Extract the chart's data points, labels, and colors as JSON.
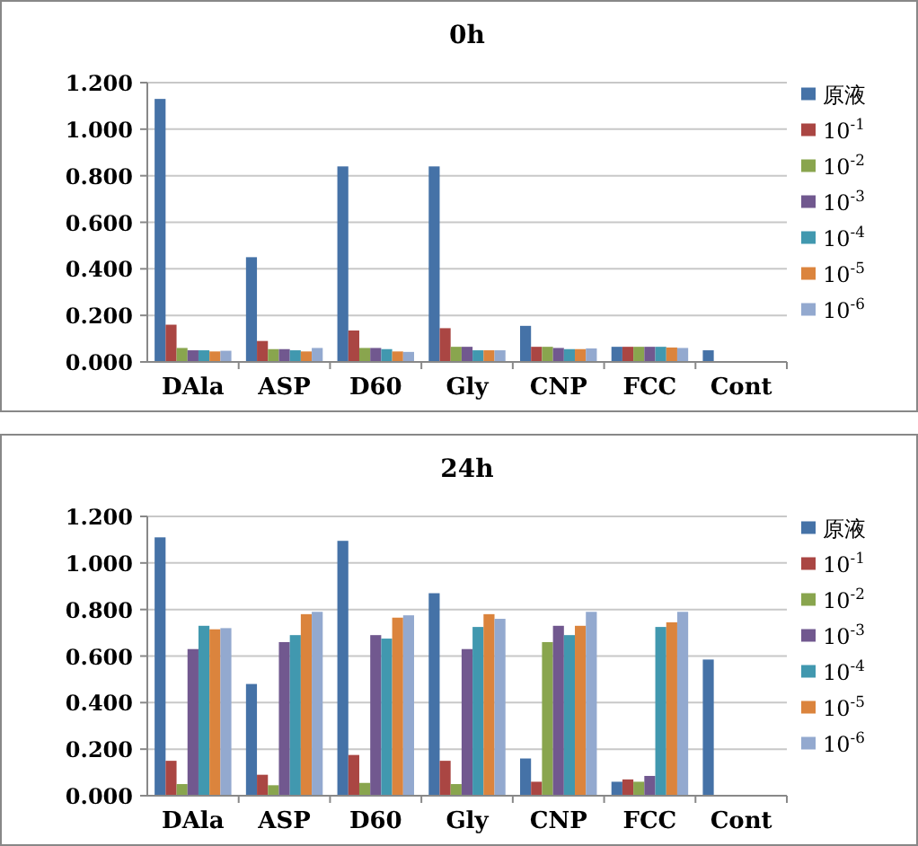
{
  "chart_data": [
    {
      "type": "bar",
      "title": "0h",
      "categories": [
        "DAla",
        "ASP",
        "D60",
        "Gly",
        "CNP",
        "FCC",
        "Cont"
      ],
      "ylim": [
        0,
        1.2
      ],
      "yticks": [
        {
          "value": 0,
          "label": "0.000"
        },
        {
          "value": 0.2,
          "label": "0.200"
        },
        {
          "value": 0.4,
          "label": "0.400"
        },
        {
          "value": 0.6,
          "label": "0.600"
        },
        {
          "value": 0.8,
          "label": "0.800"
        },
        {
          "value": 1.0,
          "label": "1.000"
        },
        {
          "value": 1.2,
          "label": "1.200"
        }
      ],
      "grid": "y",
      "legend": "right",
      "series": [
        {
          "name": "原液",
          "color": "#4572a7",
          "values": [
            1.13,
            0.45,
            0.84,
            0.84,
            0.155,
            0.065,
            0.05
          ]
        },
        {
          "name": "10$^{-1}$",
          "color": "#aa4643",
          "values": [
            0.16,
            0.09,
            0.135,
            0.145,
            0.065,
            0.065,
            null
          ]
        },
        {
          "name": "10$^{-2}$",
          "color": "#89a54e",
          "values": [
            0.06,
            0.055,
            0.06,
            0.065,
            0.065,
            0.065,
            null
          ]
        },
        {
          "name": "10$^{-3}$",
          "color": "#71588f",
          "values": [
            0.05,
            0.055,
            0.06,
            0.065,
            0.06,
            0.065,
            null
          ]
        },
        {
          "name": "10$^{-4}$",
          "color": "#4198af",
          "values": [
            0.05,
            0.05,
            0.055,
            0.05,
            0.055,
            0.065,
            null
          ]
        },
        {
          "name": "10$^{-5}$",
          "color": "#db843d",
          "values": [
            0.045,
            0.045,
            0.045,
            0.05,
            0.055,
            0.062,
            null
          ]
        },
        {
          "name": "10$^{-6}$",
          "color": "#93a9cf",
          "values": [
            0.048,
            0.06,
            0.043,
            0.05,
            0.058,
            0.06,
            null
          ]
        }
      ]
    },
    {
      "type": "bar",
      "title": "24h",
      "categories": [
        "DAla",
        "ASP",
        "D60",
        "Gly",
        "CNP",
        "FCC",
        "Cont"
      ],
      "ylim": [
        0,
        1.2
      ],
      "yticks": [
        {
          "value": 0,
          "label": "0.000"
        },
        {
          "value": 0.2,
          "label": "0.200"
        },
        {
          "value": 0.4,
          "label": "0.400"
        },
        {
          "value": 0.6,
          "label": "0.600"
        },
        {
          "value": 0.8,
          "label": "0.800"
        },
        {
          "value": 1.0,
          "label": "1.000"
        },
        {
          "value": 1.2,
          "label": "1.200"
        }
      ],
      "grid": "y",
      "legend": "right",
      "series": [
        {
          "name": "原液",
          "color": "#4572a7",
          "values": [
            1.11,
            0.48,
            1.095,
            0.87,
            0.16,
            0.06,
            0.585
          ]
        },
        {
          "name": "10$^{-1}$",
          "color": "#aa4643",
          "values": [
            0.15,
            0.09,
            0.175,
            0.15,
            0.06,
            0.07,
            null
          ]
        },
        {
          "name": "10$^{-2}$",
          "color": "#89a54e",
          "values": [
            0.05,
            0.045,
            0.055,
            0.05,
            0.66,
            0.06,
            null
          ]
        },
        {
          "name": "10$^{-3}$",
          "color": "#71588f",
          "values": [
            0.63,
            0.66,
            0.69,
            0.63,
            0.73,
            0.085,
            null
          ]
        },
        {
          "name": "10$^{-4}$",
          "color": "#4198af",
          "values": [
            0.73,
            0.69,
            0.675,
            0.725,
            0.69,
            0.725,
            null
          ]
        },
        {
          "name": "10$^{-5}$",
          "color": "#db843d",
          "values": [
            0.715,
            0.78,
            0.765,
            0.78,
            0.73,
            0.745,
            null
          ]
        },
        {
          "name": "10$^{-6}$",
          "color": "#93a9cf",
          "values": [
            0.72,
            0.79,
            0.775,
            0.76,
            0.79,
            0.79,
            null
          ]
        }
      ]
    }
  ]
}
